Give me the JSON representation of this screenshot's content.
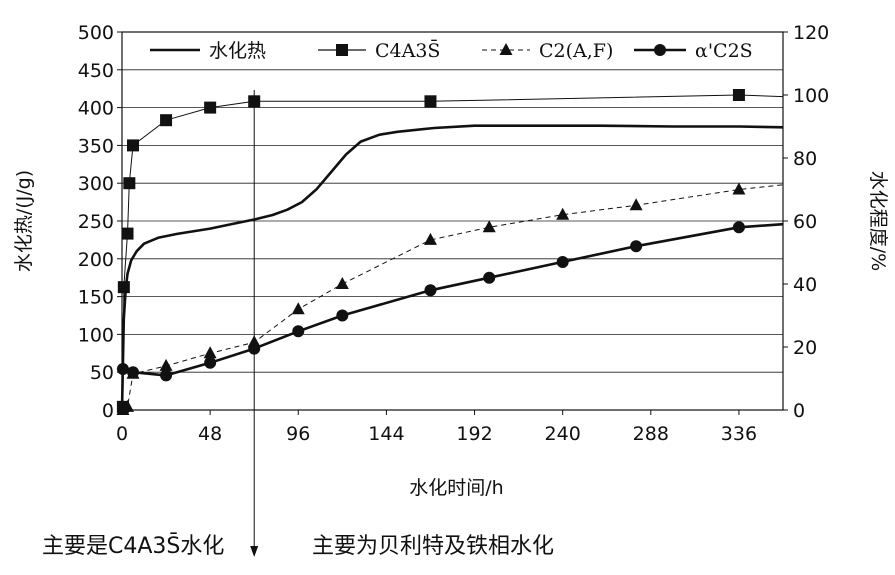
{
  "chart_data": {
    "type": "line",
    "xlabel": "水化时间/h",
    "ylabel_left": "水化热/(J/g)",
    "ylabel_right": "水化程度/%",
    "xlim": [
      0,
      360
    ],
    "ylim_left": [
      0,
      500
    ],
    "ylim_right": [
      0,
      120
    ],
    "x_ticks": [
      0,
      48,
      96,
      144,
      192,
      240,
      288,
      336
    ],
    "y_ticks_left": [
      0,
      50,
      100,
      150,
      200,
      250,
      300,
      350,
      400,
      450,
      500
    ],
    "y_ticks_right": [
      0,
      20,
      40,
      60,
      80,
      100,
      120
    ],
    "grid": "horizontal",
    "legend_position": "top",
    "marker_line_x": 72,
    "series": [
      {
        "name": "水化热",
        "axis": "left",
        "style": "thick-solid",
        "marker": "none",
        "points": [
          [
            0,
            0
          ],
          [
            0.5,
            60
          ],
          [
            1,
            120
          ],
          [
            2,
            160
          ],
          [
            3,
            180
          ],
          [
            5,
            198
          ],
          [
            8,
            210
          ],
          [
            12,
            220
          ],
          [
            20,
            228
          ],
          [
            30,
            233
          ],
          [
            48,
            240
          ],
          [
            60,
            246
          ],
          [
            72,
            252
          ],
          [
            82,
            258
          ],
          [
            90,
            265
          ],
          [
            98,
            275
          ],
          [
            106,
            292
          ],
          [
            114,
            315
          ],
          [
            122,
            338
          ],
          [
            130,
            355
          ],
          [
            140,
            364
          ],
          [
            150,
            368
          ],
          [
            170,
            373
          ],
          [
            192,
            376
          ],
          [
            220,
            376
          ],
          [
            260,
            376
          ],
          [
            300,
            375
          ],
          [
            336,
            375
          ],
          [
            360,
            374
          ]
        ]
      },
      {
        "name": "C4A3S̄",
        "axis": "right",
        "style": "thin-solid",
        "marker": "square",
        "points": [
          [
            0.5,
            1
          ],
          [
            1,
            39
          ],
          [
            3,
            56
          ],
          [
            4,
            72
          ],
          [
            6,
            84
          ],
          [
            24,
            92
          ],
          [
            48,
            96
          ],
          [
            72,
            98
          ],
          [
            168,
            98
          ],
          [
            336,
            100
          ],
          [
            360,
            99.5
          ]
        ]
      },
      {
        "name": "C2(A,F)",
        "axis": "right",
        "style": "dashed",
        "marker": "triangle",
        "points": [
          [
            0.5,
            0
          ],
          [
            3,
            1
          ],
          [
            6,
            11.5
          ],
          [
            24,
            14
          ],
          [
            48,
            18
          ],
          [
            72,
            21.5
          ],
          [
            96,
            32
          ],
          [
            120,
            40
          ],
          [
            168,
            54
          ],
          [
            200,
            58
          ],
          [
            240,
            62
          ],
          [
            280,
            65
          ],
          [
            336,
            70
          ],
          [
            360,
            71.5
          ]
        ]
      },
      {
        "name": "α'C2S",
        "axis": "right",
        "style": "thick-solid",
        "marker": "circle",
        "points": [
          [
            0.5,
            13
          ],
          [
            6,
            12
          ],
          [
            24,
            11
          ],
          [
            48,
            15
          ],
          [
            72,
            19.5
          ],
          [
            96,
            25
          ],
          [
            120,
            30
          ],
          [
            168,
            38
          ],
          [
            200,
            42
          ],
          [
            240,
            47
          ],
          [
            280,
            52
          ],
          [
            336,
            58
          ],
          [
            360,
            59
          ]
        ]
      }
    ],
    "annotations": [
      "主要是C4A3S̄水化",
      "主要为贝利特及铁相水化"
    ]
  }
}
